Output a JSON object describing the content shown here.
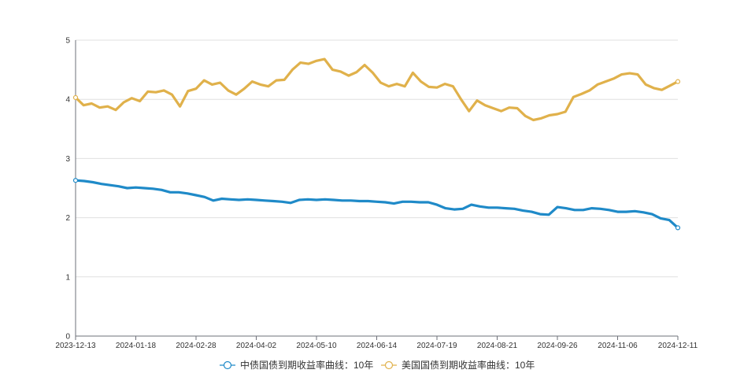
{
  "chart_data": {
    "type": "line",
    "title": "",
    "xlabel": "",
    "ylabel": "",
    "ylim": [
      0,
      5
    ],
    "y_ticks": [
      "0",
      "1",
      "2",
      "3",
      "4",
      "5"
    ],
    "x_tick_labels": [
      "2023-12-13",
      "2024-01-18",
      "2024-02-28",
      "2024-04-02",
      "2024-05-10",
      "2024-06-14",
      "2024-07-19",
      "2024-08-21",
      "2024-09-26",
      "2024-11-06",
      "2024-12-11"
    ],
    "grid": "horizontal",
    "legend_position": "bottom-center",
    "series": [
      {
        "name": "中债国债到期收益率曲线：10年",
        "color": "#1f8ac8",
        "values": [
          2.63,
          2.62,
          2.6,
          2.57,
          2.55,
          2.53,
          2.5,
          2.51,
          2.5,
          2.49,
          2.47,
          2.43,
          2.43,
          2.41,
          2.38,
          2.35,
          2.29,
          2.32,
          2.31,
          2.3,
          2.31,
          2.3,
          2.29,
          2.28,
          2.27,
          2.25,
          2.3,
          2.31,
          2.3,
          2.31,
          2.3,
          2.29,
          2.29,
          2.28,
          2.28,
          2.27,
          2.26,
          2.24,
          2.27,
          2.27,
          2.26,
          2.26,
          2.22,
          2.16,
          2.14,
          2.15,
          2.22,
          2.19,
          2.17,
          2.17,
          2.16,
          2.15,
          2.12,
          2.1,
          2.06,
          2.05,
          2.18,
          2.16,
          2.13,
          2.13,
          2.16,
          2.15,
          2.13,
          2.1,
          2.1,
          2.11,
          2.09,
          2.06,
          1.99,
          1.96,
          1.83
        ]
      },
      {
        "name": "美国国债到期收益率曲线：10年",
        "color": "#e0b14b",
        "values": [
          4.03,
          3.9,
          3.93,
          3.86,
          3.88,
          3.82,
          3.95,
          4.02,
          3.97,
          4.13,
          4.12,
          4.15,
          4.08,
          3.88,
          4.14,
          4.18,
          4.32,
          4.25,
          4.28,
          4.15,
          4.08,
          4.18,
          4.3,
          4.25,
          4.22,
          4.32,
          4.33,
          4.5,
          4.62,
          4.6,
          4.65,
          4.68,
          4.5,
          4.47,
          4.4,
          4.46,
          4.58,
          4.45,
          4.28,
          4.22,
          4.26,
          4.22,
          4.45,
          4.3,
          4.21,
          4.2,
          4.26,
          4.22,
          4.0,
          3.8,
          3.98,
          3.9,
          3.85,
          3.8,
          3.86,
          3.85,
          3.72,
          3.65,
          3.68,
          3.73,
          3.75,
          3.79,
          4.04,
          4.09,
          4.15,
          4.25,
          4.3,
          4.35,
          4.42,
          4.44,
          4.42,
          4.25,
          4.19,
          4.16,
          4.23,
          4.3
        ]
      }
    ]
  }
}
